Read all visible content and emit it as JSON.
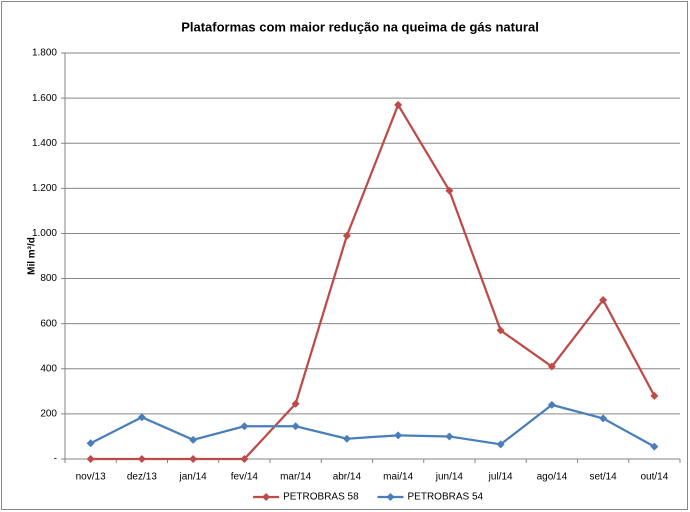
{
  "chart_data": {
    "type": "line",
    "title": "Plataformas com maior redução na queima de gás natural",
    "y_label": "Mil m³/d",
    "categories": [
      "nov/13",
      "dez/13",
      "jan/14",
      "fev/14",
      "mar/14",
      "abr/14",
      "mai/14",
      "jun/14",
      "jul/14",
      "ago/14",
      "set/14",
      "out/14"
    ],
    "series": [
      {
        "name": "PETROBRAS 58",
        "color": "#be4b48",
        "values": [
          0,
          0,
          0,
          0,
          245,
          990,
          1570,
          1190,
          570,
          410,
          705,
          280
        ]
      },
      {
        "name": "PETROBRAS 54",
        "color": "#4a7ebb",
        "values": [
          70,
          185,
          85,
          145,
          145,
          90,
          105,
          100,
          65,
          240,
          180,
          55
        ]
      }
    ],
    "ylim": [
      0,
      1800
    ],
    "yticks": [
      {
        "value": 0,
        "label": "-"
      },
      200,
      400,
      600,
      800,
      {
        "value": 1000,
        "label": "1.000"
      },
      {
        "value": 1200,
        "label": "1.200"
      },
      {
        "value": 1400,
        "label": "1.400"
      },
      {
        "value": 1600,
        "label": "1.600"
      },
      {
        "value": 1800,
        "label": "1.800"
      }
    ],
    "grid": true,
    "legend": "bottom"
  }
}
